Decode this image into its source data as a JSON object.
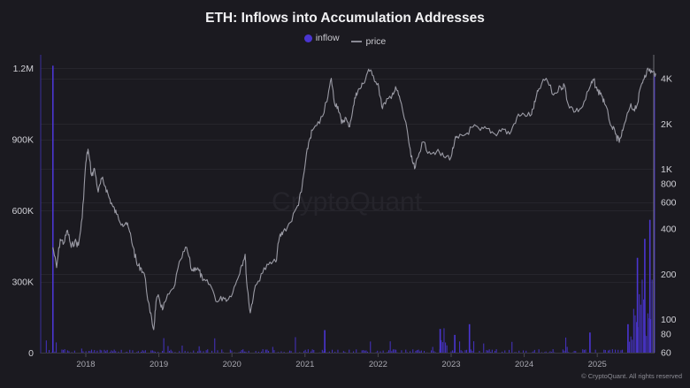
{
  "title": "ETH: Inflows into Accumulation Addresses",
  "legend": [
    {
      "label": "inflow",
      "color": "#4a35d1",
      "marker": "dot"
    },
    {
      "label": "price",
      "color": "#8a8a94",
      "marker": "line"
    }
  ],
  "watermark": "CryptoQuant",
  "copyright": "© CryptoQuant. All rights reserved",
  "colors": {
    "background": "#1b1a20",
    "grid": "#2a2930",
    "inflow": "#4a35d1",
    "price": "#9a9aa4",
    "axis_text": "#d0d0d6"
  },
  "chart_data": {
    "type": "bar+line",
    "title": "ETH: Inflows into Accumulation Addresses",
    "xlabel": "",
    "ylabel_left": "inflow",
    "ylabel_right": "price",
    "x_ticks": [
      "2018",
      "2019",
      "2020",
      "2021",
      "2022",
      "2023",
      "2024",
      "2025"
    ],
    "left_axis": {
      "ticks": [
        "0",
        "300K",
        "600K",
        "900K",
        "1.2M"
      ],
      "values": [
        0,
        300000,
        600000,
        900000,
        1200000
      ],
      "ylim": [
        0,
        1200000
      ]
    },
    "right_axis": {
      "scale": "log",
      "ticks": [
        "60",
        "80",
        "100",
        "200",
        "400",
        "600",
        "800",
        "1K",
        "2K",
        "4K"
      ],
      "values": [
        60,
        80,
        100,
        200,
        400,
        600,
        800,
        1000,
        2000,
        4000
      ]
    },
    "grid": true,
    "legend_position": "top",
    "series": [
      {
        "name": "price",
        "type": "line",
        "axis": "right",
        "x": [
          2017.55,
          2017.6,
          2017.65,
          2017.7,
          2017.75,
          2017.8,
          2017.85,
          2017.9,
          2017.95,
          2018.0,
          2018.03,
          2018.08,
          2018.12,
          2018.17,
          2018.22,
          2018.27,
          2018.32,
          2018.37,
          2018.42,
          2018.5,
          2018.55,
          2018.6,
          2018.65,
          2018.7,
          2018.75,
          2018.8,
          2018.88,
          2018.93,
          2018.96,
          2019.0,
          2019.05,
          2019.1,
          2019.2,
          2019.3,
          2019.38,
          2019.45,
          2019.5,
          2019.55,
          2019.6,
          2019.7,
          2019.8,
          2019.88,
          2019.95,
          2020.05,
          2020.12,
          2020.18,
          2020.2,
          2020.25,
          2020.3,
          2020.4,
          2020.5,
          2020.6,
          2020.65,
          2020.7,
          2020.8,
          2020.9,
          2020.95,
          2021.0,
          2021.05,
          2021.1,
          2021.2,
          2021.3,
          2021.36,
          2021.4,
          2021.45,
          2021.5,
          2021.55,
          2021.6,
          2021.65,
          2021.7,
          2021.75,
          2021.8,
          2021.87,
          2021.92,
          2022.0,
          2022.05,
          2022.1,
          2022.2,
          2022.25,
          2022.3,
          2022.4,
          2022.45,
          2022.5,
          2022.55,
          2022.6,
          2022.7,
          2022.8,
          2022.9,
          2023.0,
          2023.05,
          2023.1,
          2023.2,
          2023.3,
          2023.4,
          2023.5,
          2023.6,
          2023.7,
          2023.8,
          2023.9,
          2024.0,
          2024.1,
          2024.15,
          2024.2,
          2024.3,
          2024.4,
          2024.5,
          2024.55,
          2024.6,
          2024.7,
          2024.8,
          2024.9,
          2024.95,
          2025.0,
          2025.05,
          2025.1,
          2025.2,
          2025.25,
          2025.3,
          2025.35,
          2025.45,
          2025.5,
          2025.55,
          2025.6,
          2025.65,
          2025.7,
          2025.75,
          2025.8
        ],
        "values": [
          300,
          220,
          340,
          320,
          390,
          300,
          330,
          310,
          470,
          1100,
          1350,
          900,
          1000,
          700,
          860,
          760,
          640,
          560,
          500,
          430,
          440,
          380,
          300,
          230,
          220,
          200,
          110,
          85,
          130,
          140,
          115,
          135,
          160,
          250,
          300,
          210,
          220,
          210,
          180,
          170,
          130,
          140,
          135,
          170,
          220,
          270,
          180,
          110,
          150,
          200,
          230,
          240,
          350,
          380,
          440,
          570,
          700,
          1050,
          1500,
          1800,
          2000,
          2800,
          4000,
          2800,
          2600,
          2000,
          2200,
          1900,
          2400,
          3200,
          3400,
          3700,
          4600,
          4200,
          3700,
          2600,
          2700,
          3200,
          3400,
          2900,
          1800,
          1200,
          1000,
          1200,
          1500,
          1300,
          1300,
          1200,
          1200,
          1550,
          1600,
          1700,
          1900,
          1800,
          1850,
          1700,
          1850,
          1700,
          2200,
          2300,
          2300,
          2800,
          3400,
          4000,
          3100,
          3500,
          3600,
          2700,
          2400,
          2600,
          3500,
          3900,
          3300,
          3200,
          2700,
          1900,
          1700,
          1500,
          1800,
          2600,
          2500,
          2700,
          3600,
          4200,
          4600,
          4400,
          4300
        ]
      },
      {
        "name": "inflow",
        "type": "bar",
        "axis": "left",
        "notable_values": [
          {
            "x": 2017.55,
            "value": 1210000
          },
          {
            "x": 2021.27,
            "value": 95000
          },
          {
            "x": 2022.85,
            "value": 100000
          },
          {
            "x": 2023.05,
            "value": 75000
          },
          {
            "x": 2023.25,
            "value": 120000
          },
          {
            "x": 2024.9,
            "value": 85000
          },
          {
            "x": 2025.42,
            "value": 120000
          },
          {
            "x": 2025.55,
            "value": 400000
          },
          {
            "x": 2025.65,
            "value": 480000
          },
          {
            "x": 2025.72,
            "value": 560000
          },
          {
            "x": 2025.78,
            "value": 1180000
          }
        ]
      }
    ]
  }
}
